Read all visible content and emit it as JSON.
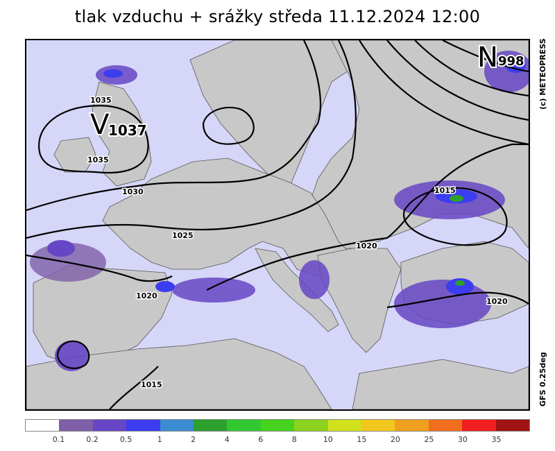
{
  "title": "tlak vzduchu + srážky  středa 11.12.2024 12:00",
  "copyright": "(c) METEOPRESS",
  "model": "GFS 0.25deg",
  "centers": [
    {
      "letter": "V",
      "value": "1037",
      "meaning": "high"
    },
    {
      "letter": "N",
      "value": "998",
      "meaning": "low"
    }
  ],
  "isobar_labels": [
    "1035",
    "1035",
    "1030",
    "1025",
    "1020",
    "1020",
    "1020",
    "1015",
    "1015"
  ],
  "legend": {
    "colors": [
      "#ffffff",
      "#7e5fa8",
      "#6646c4",
      "#3c3cf0",
      "#3c8cd2",
      "#2da02d",
      "#32c832",
      "#46d21e",
      "#8cd21e",
      "#d2e11e",
      "#f0c81e",
      "#f0a01e",
      "#f06e1e",
      "#f01e1e",
      "#a01414"
    ],
    "labels": [
      "0.1",
      "0.2",
      "0.5",
      "1",
      "2",
      "4",
      "6",
      "8",
      "10",
      "15",
      "20",
      "25",
      "30",
      "35"
    ]
  }
}
